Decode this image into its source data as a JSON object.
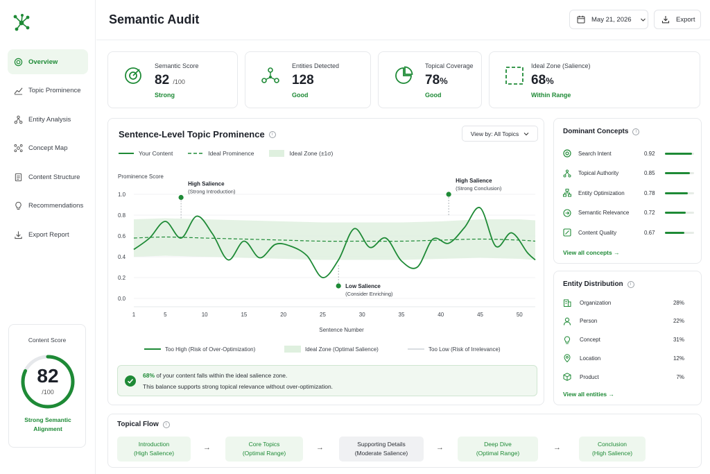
{
  "header": {
    "title": "Semantic Audit",
    "date": "May 21, 2026",
    "export_label": "Export"
  },
  "sidebar": {
    "items": [
      {
        "label": "Overview",
        "icon": "target-icon",
        "active": true
      },
      {
        "label": "Topic Prominence",
        "icon": "trend-icon"
      },
      {
        "label": "Entity Analysis",
        "icon": "network-icon"
      },
      {
        "label": "Concept Map",
        "icon": "concept-map-icon"
      },
      {
        "label": "Content Structure",
        "icon": "document-icon"
      },
      {
        "label": "Recommendations",
        "icon": "lightbulb-icon"
      },
      {
        "label": "Export Report",
        "icon": "download-icon"
      }
    ],
    "content_score": {
      "title": "Content Score",
      "value": "82",
      "denominator": "/100",
      "fraction": 0.82,
      "desc_line1": "Strong Semantic",
      "desc_line2": "Alignment"
    }
  },
  "kpis": [
    {
      "label": "Semantic Score",
      "value": "82",
      "suffix": "/100",
      "status": "Strong"
    },
    {
      "label": "Entities Detected",
      "value": "128",
      "suffix": "",
      "status": "Good"
    },
    {
      "label": "Topical Coverage",
      "value": "78",
      "suffix": "%",
      "status": "Good"
    },
    {
      "label": "Ideal Zone (Salience)",
      "value": "68",
      "suffix": "%",
      "status": "Within Range"
    }
  ],
  "chart_panel": {
    "title": "Sentence-Level Topic Prominence",
    "view_by": "View by: All Topics",
    "legend_top": [
      "Your Content",
      "Ideal Prominence",
      "Ideal Zone (±1σ)"
    ],
    "legend_bottom": [
      "Too High (Risk of Over-Optimization)",
      "Ideal Zone (Optimal Salience)",
      "Too Low (Risk of Irrelevance)"
    ],
    "note_pct": "68%",
    "note_line1": " of your content falls within the ideal salience zone.",
    "note_line2": "This balance supports strong topical relevance without over-optimization."
  },
  "chart_data": {
    "type": "line",
    "ylabel": "Prominence Score",
    "xlabel": "Sentence Number",
    "xlim": [
      1,
      52
    ],
    "ylim": [
      0,
      1.0
    ],
    "x_ticks": [
      1,
      5,
      10,
      15,
      20,
      25,
      30,
      35,
      40,
      45,
      50
    ],
    "y_ticks": [
      "0.0",
      "0.2",
      "0.4",
      "0.6",
      "0.8",
      "1.0"
    ],
    "series": [
      {
        "name": "Your Content",
        "x": [
          1,
          3,
          5,
          7,
          9,
          11,
          13,
          15,
          17,
          19,
          21,
          23,
          25,
          27,
          29,
          31,
          33,
          35,
          37,
          39,
          41,
          43,
          45,
          47,
          49,
          51,
          52
        ],
        "y": [
          0.47,
          0.58,
          0.74,
          0.58,
          0.79,
          0.62,
          0.37,
          0.55,
          0.39,
          0.52,
          0.5,
          0.41,
          0.2,
          0.37,
          0.67,
          0.49,
          0.58,
          0.36,
          0.3,
          0.57,
          0.53,
          0.68,
          0.87,
          0.5,
          0.63,
          0.44,
          0.37
        ]
      },
      {
        "name": "Ideal Prominence",
        "x": [
          1,
          5,
          10,
          15,
          20,
          25,
          30,
          35,
          40,
          45,
          50,
          52
        ],
        "y": [
          0.58,
          0.59,
          0.58,
          0.57,
          0.56,
          0.55,
          0.55,
          0.55,
          0.56,
          0.57,
          0.56,
          0.55
        ]
      }
    ],
    "ideal_zone": {
      "x": [
        1,
        5,
        10,
        15,
        20,
        25,
        30,
        35,
        40,
        45,
        50,
        52
      ],
      "upper": [
        0.76,
        0.77,
        0.76,
        0.75,
        0.74,
        0.73,
        0.73,
        0.73,
        0.74,
        0.76,
        0.76,
        0.75
      ],
      "lower": [
        0.4,
        0.41,
        0.4,
        0.39,
        0.38,
        0.37,
        0.37,
        0.37,
        0.38,
        0.39,
        0.38,
        0.37
      ]
    },
    "annotations": [
      {
        "x": 7,
        "y": 0.97,
        "title": "High Salience",
        "subtitle": "(Strong Introduction)"
      },
      {
        "x": 27,
        "y": 0.12,
        "title": "Low Salience",
        "subtitle": "(Consider Enriching)"
      },
      {
        "x": 41,
        "y": 1.0,
        "title": "High Salience",
        "subtitle": "(Strong Conclusion)"
      }
    ]
  },
  "dominant_concepts": {
    "title": "Dominant Concepts",
    "items": [
      {
        "label": "Search Intent",
        "value": "0.92",
        "score": 0.92,
        "icon": "target-icon"
      },
      {
        "label": "Topical Authority",
        "value": "0.85",
        "score": 0.85,
        "icon": "network-icon"
      },
      {
        "label": "Entity Optimization",
        "value": "0.78",
        "score": 0.78,
        "icon": "hierarchy-icon"
      },
      {
        "label": "Semantic Relevance",
        "value": "0.72",
        "score": 0.72,
        "icon": "link-icon"
      },
      {
        "label": "Content Quality",
        "value": "0.67",
        "score": 0.67,
        "icon": "edit-icon"
      }
    ],
    "view_all": "View all concepts →"
  },
  "entity_distribution": {
    "title": "Entity Distribution",
    "items": [
      {
        "label": "Organization",
        "pct": "28%",
        "icon": "building-icon"
      },
      {
        "label": "Person",
        "pct": "22%",
        "icon": "person-icon"
      },
      {
        "label": "Concept",
        "pct": "31%",
        "icon": "lightbulb-icon"
      },
      {
        "label": "Location",
        "pct": "12%",
        "icon": "location-pin-icon"
      },
      {
        "label": "Product",
        "pct": "7%",
        "icon": "box-icon"
      }
    ],
    "view_all": "View all entities →"
  },
  "topical_flow": {
    "title": "Topical Flow",
    "steps": [
      {
        "name": "Introduction",
        "state": "(High Salience)"
      },
      {
        "name": "Core Topics",
        "state": "(Optimal Range)"
      },
      {
        "name": "Supporting Details",
        "state": "(Moderate Salience)"
      },
      {
        "name": "Deep Dive",
        "state": "(Optimal Range)"
      },
      {
        "name": "Conclusion",
        "state": "(High Salience)"
      }
    ],
    "arrow": "→"
  },
  "colors": {
    "accent": "#1e8a36",
    "zone": "#dff0df",
    "text": "#1d2129"
  }
}
